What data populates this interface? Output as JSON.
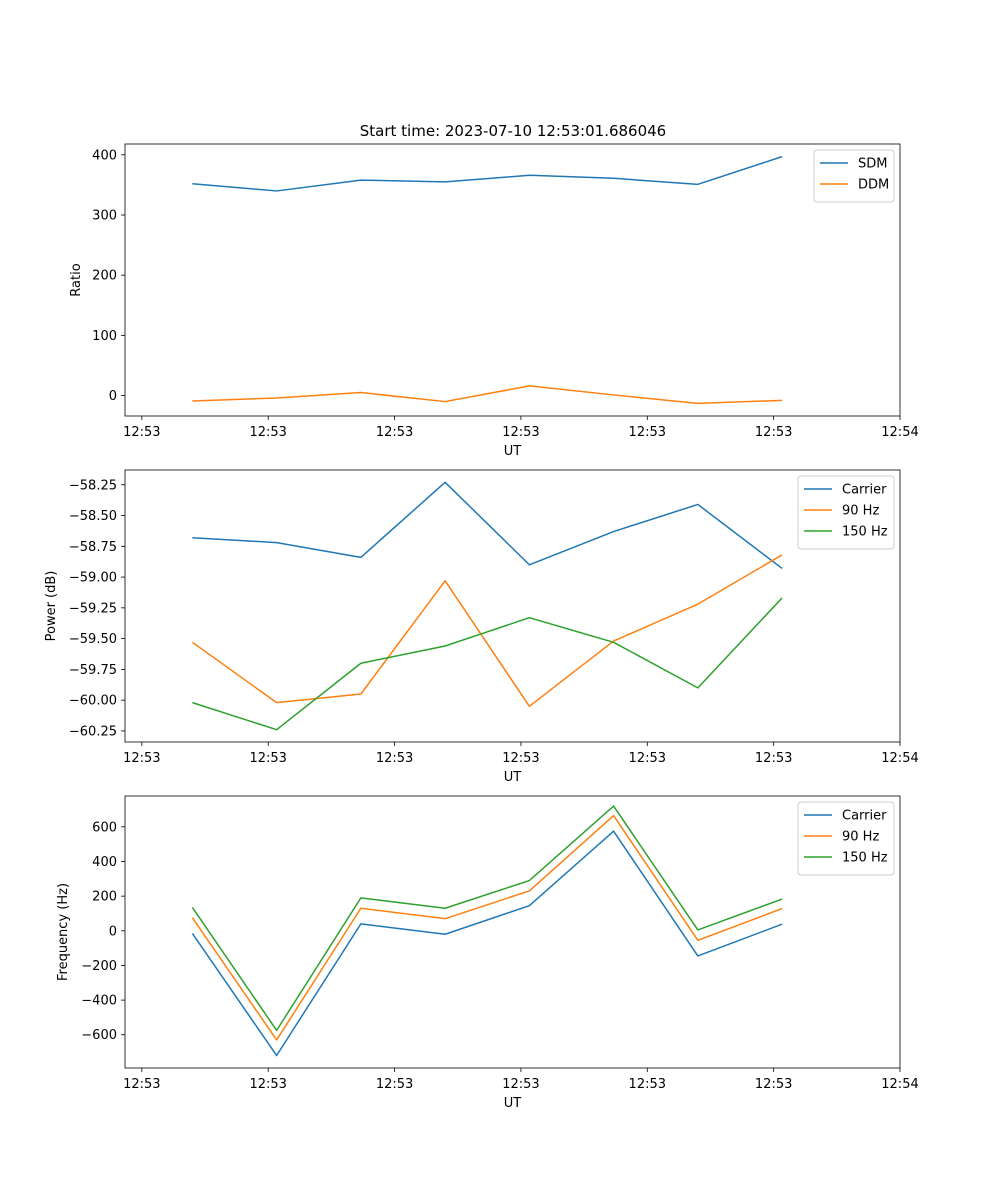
{
  "figure": {
    "title": "Start time: 2023-07-10 12:53:01.686046"
  },
  "colors": {
    "blue": "#1f77b4",
    "orange": "#ff7f0e",
    "green": "#2ca02c"
  },
  "chart_data": [
    {
      "type": "line",
      "xlabel": "UT",
      "ylabel": "Ratio",
      "x": [
        1,
        2,
        3,
        4,
        5,
        6,
        7,
        8
      ],
      "xlim": [
        0.2,
        9.4
      ],
      "xticks": [
        0.4,
        1.9,
        3.4,
        4.9,
        6.4,
        7.9,
        9.4
      ],
      "xtick_labels": [
        "12:53",
        "12:53",
        "12:53",
        "12:53",
        "12:53",
        "12:53",
        "12:54"
      ],
      "ylim": [
        -34,
        418
      ],
      "yticks": [
        0,
        100,
        200,
        300,
        400
      ],
      "ytick_labels": [
        "0",
        "100",
        "200",
        "300",
        "400"
      ],
      "legend": "top-right",
      "series": [
        {
          "name": "SDM",
          "color": "#1f77b4",
          "values": [
            352,
            340,
            358,
            355,
            366,
            361,
            351,
            397
          ]
        },
        {
          "name": "DDM",
          "color": "#ff7f0e",
          "values": [
            -9,
            -4,
            5,
            -10,
            16,
            1,
            -13,
            -8
          ]
        }
      ]
    },
    {
      "type": "line",
      "xlabel": "UT",
      "ylabel": "Power (dB)",
      "x": [
        1,
        2,
        3,
        4,
        5,
        6,
        7,
        8
      ],
      "xlim": [
        0.2,
        9.4
      ],
      "xticks": [
        0.4,
        1.9,
        3.4,
        4.9,
        6.4,
        7.9,
        9.4
      ],
      "xtick_labels": [
        "12:53",
        "12:53",
        "12:53",
        "12:53",
        "12:53",
        "12:53",
        "12:54"
      ],
      "ylim": [
        -60.34,
        -58.13
      ],
      "yticks": [
        -60.25,
        -60.0,
        -59.75,
        -59.5,
        -59.25,
        -59.0,
        -58.75,
        -58.5,
        -58.25
      ],
      "ytick_labels": [
        "−60.25",
        "−60.00",
        "−59.75",
        "−59.50",
        "−59.25",
        "−59.00",
        "−58.75",
        "−58.50",
        "−58.25"
      ],
      "legend": "top-right",
      "series": [
        {
          "name": "Carrier",
          "color": "#1f77b4",
          "values": [
            -58.68,
            -58.72,
            -58.84,
            -58.23,
            -58.9,
            -58.63,
            -58.41,
            -58.93
          ]
        },
        {
          "name": "90 Hz",
          "color": "#ff7f0e",
          "values": [
            -59.53,
            -60.02,
            -59.95,
            -59.03,
            -60.05,
            -59.52,
            -59.22,
            -58.82
          ]
        },
        {
          "name": "150 Hz",
          "color": "#2ca02c",
          "values": [
            -60.02,
            -60.24,
            -59.7,
            -59.56,
            -59.33,
            -59.53,
            -59.9,
            -59.17
          ]
        }
      ]
    },
    {
      "type": "line",
      "xlabel": "UT",
      "ylabel": "Frequency (Hz)",
      "x": [
        1,
        2,
        3,
        4,
        5,
        6,
        7,
        8
      ],
      "xlim": [
        0.2,
        9.4
      ],
      "xticks": [
        0.4,
        1.9,
        3.4,
        4.9,
        6.4,
        7.9,
        9.4
      ],
      "xtick_labels": [
        "12:53",
        "12:53",
        "12:53",
        "12:53",
        "12:53",
        "12:53",
        "12:54"
      ],
      "ylim": [
        -792,
        778
      ],
      "yticks": [
        -600,
        -400,
        -200,
        0,
        200,
        400,
        600
      ],
      "ytick_labels": [
        "−600",
        "−400",
        "−200",
        "0",
        "200",
        "400",
        "600"
      ],
      "legend": "top-right",
      "series": [
        {
          "name": "Carrier",
          "color": "#1f77b4",
          "values": [
            -15,
            -720,
            40,
            -20,
            145,
            575,
            -145,
            38
          ]
        },
        {
          "name": "90 Hz",
          "color": "#ff7f0e",
          "values": [
            75,
            -630,
            130,
            70,
            230,
            665,
            -55,
            128
          ]
        },
        {
          "name": "150 Hz",
          "color": "#2ca02c",
          "values": [
            135,
            -575,
            190,
            130,
            290,
            720,
            5,
            183
          ]
        }
      ]
    }
  ]
}
